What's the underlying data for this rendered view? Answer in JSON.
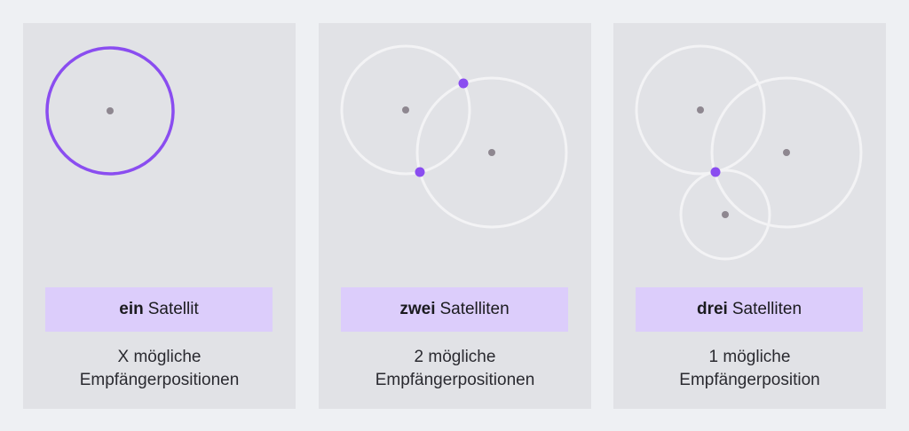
{
  "colors": {
    "background": "#eef0f3",
    "panel": "#e1e2e6",
    "label_bg": "#dccdfb",
    "accent": "#8a4df0",
    "circle_faint": "#f3f3f5",
    "center_dot": "#8e8790"
  },
  "panels": [
    {
      "label_bold": "ein",
      "label_rest": "Satellit",
      "caption_line1": "X mögliche",
      "caption_line2": "Empfängerpositionen"
    },
    {
      "label_bold": "zwei",
      "label_rest": "Satelliten",
      "caption_line1": "2 mögliche",
      "caption_line2": "Empfängerpositionen"
    },
    {
      "label_bold": "drei",
      "label_rest": "Satelliten",
      "caption_line1": "1 mögliche",
      "caption_line2": "Empfängerposition"
    }
  ]
}
